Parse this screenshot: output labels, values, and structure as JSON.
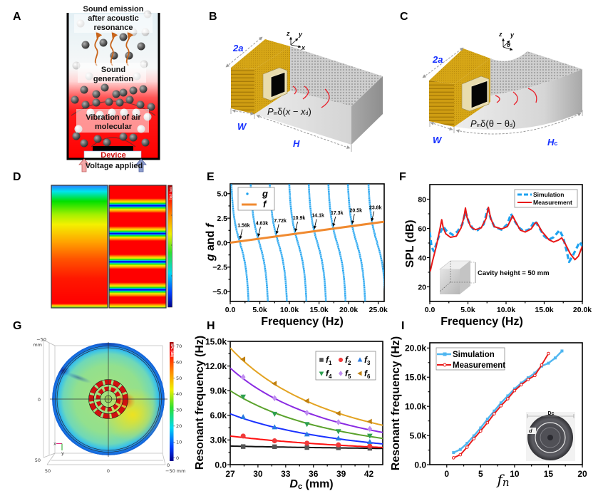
{
  "panel_labels": {
    "A": "A",
    "B": "B",
    "C": "C",
    "D": "D",
    "E": "E",
    "F": "F",
    "G": "G",
    "H": "H",
    "I": "I"
  },
  "panel_A": {
    "emission_lines": [
      "Sound emission",
      "after acoustic",
      "resonance"
    ],
    "generation_lines": [
      "Sound",
      "generation"
    ],
    "vibration_lines": [
      "Vibration of air",
      "molecular"
    ],
    "device_label": "Device",
    "voltage_label": "Voltage applied"
  },
  "panel_B": {
    "dim_depth": "2a",
    "dim_width": "W",
    "dim_length": "H",
    "axes": {
      "z": "z",
      "y": "y",
      "x": "x"
    },
    "source_term": {
      "P": "P",
      "sub": "in",
      "delta": "δ(",
      "var": "x",
      "minus": " − ",
      "var2": "x",
      "sub2": "d",
      "close": ")"
    }
  },
  "panel_C": {
    "dim_depth": "2a",
    "dim_width": "W",
    "dim_length": "H",
    "dim_length_sub": "c",
    "axes": {
      "z": "z",
      "y": "y",
      "theta": "θ"
    },
    "source_term": {
      "P": "P",
      "sub": "in",
      "delta": "δ(",
      "var": "θ",
      "minus": " − ",
      "var2": "θ",
      "sub2": "d",
      "close": ")"
    }
  },
  "colors": {
    "device_text": "#d01010",
    "dimension_text": "#1530ff",
    "wave_arcs": "#e8202a",
    "gold": "#d2a012"
  },
  "chart_data": [
    {
      "id": "D",
      "panel_label": "D",
      "type": "heatmap",
      "colorbar_title": "SPL (dB)",
      "colormap": "jet",
      "maps": 2,
      "right_map_minima_count": 4
    },
    {
      "id": "E",
      "panel_label": "E",
      "type": "line",
      "xlabel": "Frequency (Hz)",
      "ylabel_parts": [
        "g",
        " and ",
        "f"
      ],
      "xlim": [
        0,
        26000
      ],
      "ylim": [
        -6,
        6
      ],
      "x_ticks": [
        0,
        5000,
        10000,
        15000,
        20000,
        25000
      ],
      "x_tick_labels": [
        "0.0",
        "5.0k",
        "10.0k",
        "15.0k",
        "20.0k",
        "25.0k"
      ],
      "y_ticks": [
        -5,
        -2.5,
        0,
        2.5,
        5
      ],
      "y_tick_labels": [
        "−5.0",
        "−2.5",
        "0.0",
        "2.5",
        "5.0"
      ],
      "legend": [
        {
          "name": "g",
          "style": "dots"
        },
        {
          "name": "f",
          "style": "line"
        }
      ],
      "series": [
        {
          "name": "f",
          "type": "line",
          "color": "#f08a30",
          "x": [
            0,
            26000
          ],
          "y": [
            0,
            2.14
          ]
        },
        {
          "name": "g",
          "type": "tangent-branches",
          "color": "#1fa3f0",
          "zero_crossings_hz": [
            1640,
            4900,
            8120,
            11420,
            14710,
            18030,
            21330,
            24800
          ],
          "halfwidth_hz": 1450,
          "clip": 6
        }
      ],
      "intersections": [
        {
          "x": 1560,
          "label": "1.56k"
        },
        {
          "x": 4630,
          "label": "4.63k"
        },
        {
          "x": 7720,
          "label": "7.72k"
        },
        {
          "x": 10900,
          "label": "10.9k"
        },
        {
          "x": 14100,
          "label": "14.1k"
        },
        {
          "x": 17300,
          "label": "17.3k"
        },
        {
          "x": 20500,
          "label": "20.5k"
        },
        {
          "x": 23800,
          "label": "23.8k"
        }
      ]
    },
    {
      "id": "F",
      "panel_label": "F",
      "type": "line",
      "xlabel": "Frequency (Hz)",
      "ylabel": "SPL (dB)",
      "xlim": [
        0,
        20000
      ],
      "ylim": [
        10,
        90
      ],
      "x_ticks": [
        0,
        5000,
        10000,
        15000,
        20000
      ],
      "x_tick_labels": [
        "0.0",
        "5.0k",
        "10.0k",
        "15.0k",
        "20.0k"
      ],
      "y_ticks": [
        20,
        40,
        60,
        80
      ],
      "y_tick_labels": [
        "20",
        "40",
        "60",
        "80"
      ],
      "legend_position": "top-right",
      "series": [
        {
          "name": "Simulation",
          "style": "dashed",
          "color": "#1fa3f0",
          "x": [
            0,
            220,
            530,
            840,
            1300,
            1770,
            2240,
            3020,
            3640,
            4260,
            4670,
            5100,
            5660,
            6280,
            7060,
            7590,
            7990,
            8460,
            9390,
            10170,
            10640,
            11100,
            11720,
            12350,
            13120,
            13750,
            14370,
            14990,
            15610,
            16240,
            17010,
            17480,
            17950,
            18260,
            18720,
            19350,
            19660,
            20000
          ],
          "y": [
            57.2,
            47.5,
            44.3,
            49.1,
            56.4,
            61.2,
            58,
            55.6,
            58,
            62.8,
            71.6,
            64.4,
            59.6,
            58.8,
            62.8,
            73.2,
            66.8,
            61.2,
            59.1,
            62.8,
            70,
            65.2,
            60.4,
            58,
            59.6,
            65.2,
            60.4,
            54.7,
            52.3,
            54,
            58.8,
            54,
            44.3,
            37,
            41,
            47.5,
            50.7,
            47.8
          ]
        },
        {
          "name": "Measurement",
          "style": "solid",
          "color": "#e81818",
          "x": [
            60,
            370,
            840,
            1300,
            1560,
            1770,
            2080,
            2700,
            3480,
            4100,
            4480,
            4670,
            4880,
            5350,
            5970,
            6750,
            7370,
            7680,
            7990,
            8460,
            9390,
            10170,
            10640,
            10860,
            11260,
            11880,
            12500,
            13280,
            13810,
            14050,
            14680,
            15610,
            16240,
            16860,
            17300,
            17790,
            18410,
            19030,
            19500,
            20000
          ],
          "y": [
            30.6,
            37.9,
            47.5,
            58.8,
            66,
            60.4,
            56.4,
            53.9,
            54.7,
            60.4,
            67.6,
            74,
            67.6,
            61.2,
            59.1,
            60.4,
            66.8,
            74.5,
            66.8,
            61.2,
            59.6,
            61.2,
            66,
            68.7,
            64.4,
            58.8,
            57.5,
            59.6,
            63.6,
            64,
            58,
            52.3,
            50.7,
            52,
            53.5,
            49.1,
            42.7,
            38.6,
            41,
            47.8
          ]
        }
      ],
      "annotation": "Cavity height = 50 mm"
    },
    {
      "id": "G",
      "panel_label": "G",
      "type": "heatmap",
      "colorbar_title": "SPL (dB)",
      "colorbar_ticks": [
        0,
        10,
        20,
        30,
        40,
        50,
        60,
        70
      ],
      "axis_labels": {
        "left": [
          "−50",
          "0",
          "50"
        ],
        "left_unit": "mm",
        "bottom": [
          "50",
          "0",
          "−50 mm"
        ],
        "corner": "0"
      },
      "triad": {
        "x": "x",
        "y": "y"
      }
    },
    {
      "id": "H",
      "panel_label": "H",
      "type": "scatter",
      "xlabel_parts": [
        "D",
        "c",
        " (mm)"
      ],
      "ylabel": "Resonant frequency (Hz)",
      "xlim": [
        27,
        43.5
      ],
      "ylim": [
        0,
        15000
      ],
      "x_ticks": [
        27,
        30,
        33,
        36,
        39,
        42
      ],
      "x_tick_labels": [
        "27",
        "30",
        "33",
        "36",
        "39",
        "42"
      ],
      "y_ticks": [
        0,
        3000,
        6000,
        9000,
        12000,
        15000
      ],
      "y_tick_labels": [
        "0.0",
        "3.0k",
        "6.0k",
        "9.0k",
        "12.0k",
        "15.0k"
      ],
      "legend_position": "top-right",
      "series": [
        {
          "name": "f",
          "sub": "1",
          "marker": "square",
          "marker_color": "#555555",
          "line_color": "#111111",
          "x": [
            28.4,
            31.8,
            35.3,
            38.7,
            42.1
          ],
          "y": [
            2200,
            2180,
            2080,
            2050,
            1990
          ],
          "fit": {
            "x": [
              27,
              43.5
            ],
            "y": [
              2260,
              1970
            ]
          }
        },
        {
          "name": "f",
          "sub": "2",
          "marker": "circle",
          "marker_color": "#f03a3a",
          "line_color": "#ff1010",
          "x": [
            28.4,
            31.8,
            35.3,
            38.7,
            42.1
          ],
          "y": [
            3480,
            2900,
            2610,
            2410,
            2260
          ],
          "fit": {
            "x": [
              27,
              43.5
            ],
            "y": [
              3480,
              2090
            ]
          }
        },
        {
          "name": "f",
          "sub": "3",
          "marker": "triangle-up",
          "marker_color": "#2a7be0",
          "line_color": "#1a32ff",
          "x": [
            28.4,
            31.8,
            35.3,
            38.7,
            42.1
          ],
          "y": [
            5800,
            4550,
            3680,
            3190,
            2760
          ],
          "fit": {
            "x": [
              27,
              43.5
            ],
            "y": [
              6180,
              2520
            ]
          }
        },
        {
          "name": "f",
          "sub": "4",
          "marker": "triangle-down",
          "marker_color": "#2ea050",
          "line_color": "#5aa22c",
          "x": [
            28.4,
            31.8,
            35.3,
            38.7,
            42.1
          ],
          "y": [
            8270,
            6180,
            4930,
            4060,
            3510
          ],
          "fit": {
            "x": [
              27,
              43.5
            ],
            "y": [
              9000,
              3190
            ]
          }
        },
        {
          "name": "f",
          "sub": "5",
          "marker": "diamond",
          "marker_color": "#c08ef0",
          "line_color": "#8a2be2",
          "x": [
            28.4,
            31.8,
            35.3,
            38.7,
            42.1
          ],
          "y": [
            10650,
            8090,
            6300,
            5160,
            4350
          ],
          "fit": {
            "x": [
              27,
              43.5
            ],
            "y": [
              11750,
              3920
            ]
          }
        },
        {
          "name": "f",
          "sub": "6",
          "marker": "triangle-left",
          "marker_color": "#c08010",
          "line_color": "#e3a322",
          "x": [
            28.4,
            31.8,
            35.3,
            38.7,
            42.1
          ],
          "y": [
            12820,
            9860,
            7750,
            6240,
            5250
          ],
          "fit": {
            "x": [
              27,
              43.5
            ],
            "y": [
              14200,
              4790
            ]
          }
        }
      ]
    },
    {
      "id": "I",
      "panel_label": "I",
      "type": "line",
      "xlabel_parts": [
        "f",
        "n"
      ],
      "ylabel": "Resonant frequency (Hz)",
      "xlim": [
        -2.5,
        20
      ],
      "ylim": [
        0,
        20900
      ],
      "x_ticks": [
        0,
        5,
        10,
        15,
        20
      ],
      "x_tick_labels": [
        "0",
        "5",
        "10",
        "15",
        "20"
      ],
      "y_ticks": [
        0,
        5000,
        10000,
        15000,
        20000
      ],
      "y_tick_labels": [
        "0.0",
        "5.0k",
        "10.0k",
        "15.0k",
        "20.0k"
      ],
      "legend_position": "top-left",
      "series": [
        {
          "name": "Simulation",
          "marker": "square",
          "color": "#4fb6f0",
          "x": [
            1,
            2,
            3,
            4,
            5,
            6,
            7,
            8,
            9,
            10,
            11,
            12,
            13,
            14,
            15,
            16,
            17
          ],
          "y": [
            2070,
            2600,
            3660,
            4950,
            6300,
            7800,
            9200,
            10600,
            11800,
            13000,
            14000,
            14900,
            15700,
            16900,
            17400,
            18300,
            19500
          ]
        },
        {
          "name": "Measurement",
          "marker": "circle-open",
          "color": "#e81818",
          "x": [
            1,
            2,
            3,
            4,
            5,
            6,
            7,
            8,
            9,
            10,
            11,
            12,
            13,
            14,
            15
          ],
          "y": [
            1170,
            1700,
            3000,
            4460,
            5770,
            7200,
            8730,
            10100,
            11300,
            12700,
            13700,
            14600,
            15300,
            17100,
            19060
          ]
        }
      ],
      "inset_labels": {
        "outer_diameter": "Dc",
        "width": "d"
      }
    }
  ]
}
